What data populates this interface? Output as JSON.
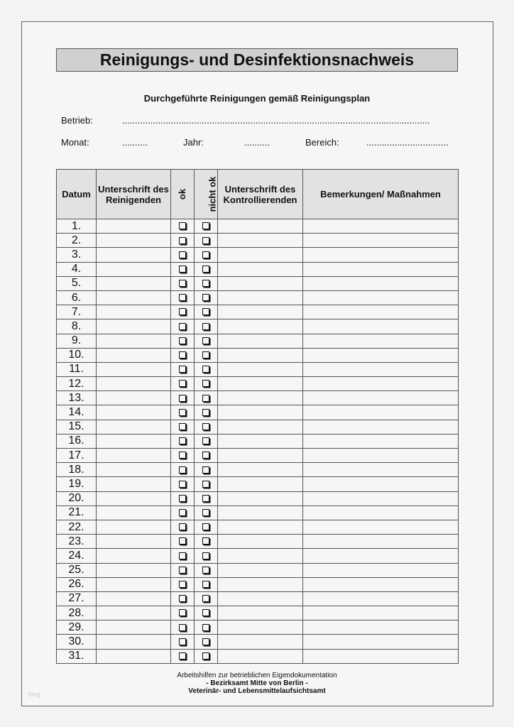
{
  "title": "Reinigungs- und Desinfektionsnachweis",
  "subtitle": "Durchgeführte Reinigungen gemäß Reinigungsplan",
  "fields": {
    "betrieb_label": "Betrieb:",
    "betrieb_value": "........................................................................................................................",
    "monat_label": "Monat:",
    "monat_value": "..........",
    "jahr_label": "Jahr:",
    "jahr_value": "..........",
    "bereich_label": "Bereich:",
    "bereich_value": "................................"
  },
  "table": {
    "headers": [
      "Datum",
      "Unterschrift des Reinigenden",
      "ok",
      "nicht ok",
      "Unterschrift des Kontrollierenden",
      "Bemerkungen/ Maßnahmen"
    ],
    "rows": [
      "1.",
      "2.",
      "3.",
      "4.",
      "5.",
      "6.",
      "7.",
      "8.",
      "9.",
      "10.",
      "11.",
      "12.",
      "13.",
      "14.",
      "15.",
      "16.",
      "17.",
      "18.",
      "19.",
      "20.",
      "21.",
      "22.",
      "23.",
      "24.",
      "25.",
      "26.",
      "27.",
      "28.",
      "29.",
      "30.",
      "31."
    ]
  },
  "footer": {
    "line1": "Arbeitshilfen zur betrieblichen Eigendokumentation",
    "line2": "- Bezirksamt Mitte von Berlin -",
    "line3": "Veterinär- und Lebensmittelaufsichtsamt"
  },
  "watermark": "blog"
}
